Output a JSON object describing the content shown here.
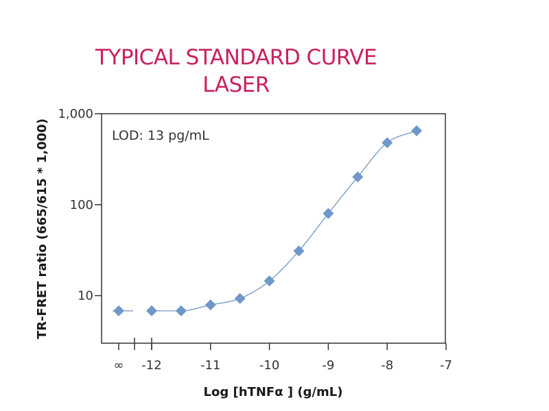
{
  "colors": {
    "title": "#c8215e",
    "series": "#6f97c8",
    "curve": "#7d9dc8",
    "axis": "#333333"
  },
  "chart_data": {
    "type": "scatter",
    "title_lines": [
      "TYPICAL STANDARD CURVE",
      "LASER"
    ],
    "xlabel": "Log [hTNFα ] (g/mL)",
    "ylabel": "TR-FRET ratio (665/615 * 1,000)",
    "y_scale": "log",
    "ylim": [
      3,
      1000
    ],
    "xlim": [
      -12.55,
      -7
    ],
    "x_axis_break": true,
    "x_ticks": [
      {
        "value": "inf",
        "label": "∞"
      },
      {
        "value": -12,
        "label": "-12"
      },
      {
        "value": -11,
        "label": "-11"
      },
      {
        "value": -10,
        "label": "-10"
      },
      {
        "value": -9,
        "label": "-9"
      },
      {
        "value": -8,
        "label": "-8"
      },
      {
        "value": -7,
        "label": "-7"
      }
    ],
    "y_ticks": [
      {
        "value": 10,
        "label": "10"
      },
      {
        "value": 100,
        "label": "100"
      },
      {
        "value": 1000,
        "label": "1,000"
      }
    ],
    "annotation": "LOD: 13 pg/mL",
    "grid": false,
    "points": [
      {
        "x": "inf",
        "y": 6.8
      },
      {
        "x": -12,
        "y": 6.8
      },
      {
        "x": -11.5,
        "y": 6.8
      },
      {
        "x": -11,
        "y": 7.9
      },
      {
        "x": -10.5,
        "y": 9.3
      },
      {
        "x": -10,
        "y": 14.5
      },
      {
        "x": -9.5,
        "y": 31
      },
      {
        "x": -9,
        "y": 80
      },
      {
        "x": -8.5,
        "y": 202
      },
      {
        "x": -8,
        "y": 480
      },
      {
        "x": -7.5,
        "y": 650
      }
    ]
  }
}
